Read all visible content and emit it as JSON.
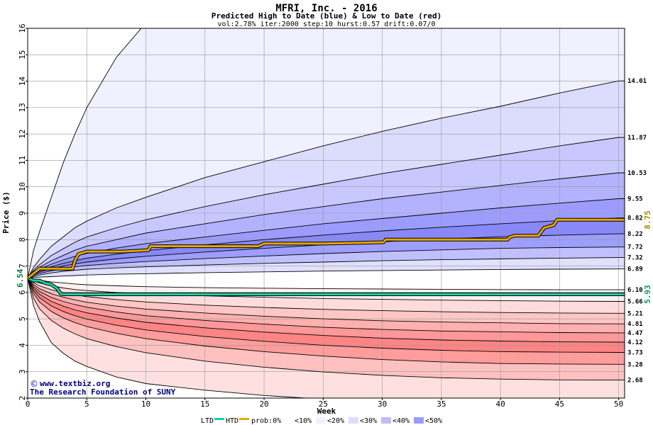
{
  "chart_data": {
    "type": "area",
    "title": "MFRI, Inc. - 2016",
    "subtitle": "Predicted High to Date (blue) &  Low to Date (red)",
    "params": "vol:2.78% iter:2000 step:10 hurst:0.57 drift:0.07/0",
    "xlabel": "Week",
    "ylabel": "Price ($)",
    "xlim": [
      0,
      50.5
    ],
    "ylim": [
      2,
      16
    ],
    "x_ticks": [
      0,
      5,
      10,
      15,
      20,
      25,
      30,
      35,
      40,
      45,
      50
    ],
    "y_ticks": [
      2,
      3,
      4,
      5,
      6,
      7,
      8,
      9,
      10,
      11,
      12,
      13,
      14,
      15,
      16
    ],
    "grid": true,
    "start_price": 6.54,
    "start_label": "6.54",
    "x_grid": [
      0,
      0.5,
      1,
      2,
      3,
      4,
      5,
      7.5,
      10,
      15,
      20,
      25,
      30,
      35,
      40,
      45,
      50
    ],
    "outer_upper": [
      6.54,
      7.6,
      8.3,
      9.6,
      10.9,
      12.0,
      13.0,
      14.9,
      16.0
    ],
    "outer_upper_x": [
      0,
      0.5,
      1,
      2,
      3,
      4,
      5,
      7.5,
      9.6
    ],
    "outer_lower": [
      6.54,
      5.5,
      4.9,
      4.1,
      3.7,
      3.4,
      3.2,
      2.8,
      2.55,
      2.3,
      2.1,
      2.0
    ],
    "outer_lower_x": [
      0,
      0.5,
      1,
      2,
      3,
      4,
      5,
      7.5,
      10,
      15,
      20,
      23.5
    ],
    "upper_lines": [
      {
        "label": "14.01",
        "values": [
          6.54,
          6.95,
          7.25,
          7.75,
          8.1,
          8.45,
          8.7,
          9.2,
          9.6,
          10.35,
          10.95,
          11.55,
          12.1,
          12.6,
          13.05,
          13.55,
          14.01
        ]
      },
      {
        "label": "11.87",
        "values": [
          6.54,
          6.85,
          7.05,
          7.4,
          7.65,
          7.9,
          8.1,
          8.45,
          8.75,
          9.25,
          9.7,
          10.1,
          10.5,
          10.85,
          11.2,
          11.55,
          11.87
        ]
      },
      {
        "label": "10.53",
        "values": [
          6.54,
          6.8,
          6.95,
          7.2,
          7.4,
          7.6,
          7.75,
          8.0,
          8.25,
          8.6,
          8.95,
          9.25,
          9.55,
          9.8,
          10.05,
          10.3,
          10.53
        ]
      },
      {
        "label": "9.55",
        "values": [
          6.54,
          6.75,
          6.88,
          7.07,
          7.23,
          7.37,
          7.48,
          7.68,
          7.85,
          8.1,
          8.35,
          8.6,
          8.8,
          9.0,
          9.2,
          9.38,
          9.55
        ]
      },
      {
        "label": "8.82",
        "values": [
          6.54,
          6.7,
          6.82,
          6.97,
          7.1,
          7.2,
          7.3,
          7.45,
          7.58,
          7.8,
          8.0,
          8.17,
          8.33,
          8.47,
          8.6,
          8.72,
          8.82
        ]
      },
      {
        "label": "8.22",
        "values": [
          6.54,
          6.67,
          6.77,
          6.9,
          7.0,
          7.08,
          7.15,
          7.27,
          7.37,
          7.53,
          7.67,
          7.8,
          7.92,
          8.02,
          8.11,
          8.17,
          8.22
        ]
      },
      {
        "label": "7.72",
        "values": [
          6.54,
          6.64,
          6.72,
          6.82,
          6.9,
          6.97,
          7.02,
          7.1,
          7.17,
          7.28,
          7.38,
          7.47,
          7.55,
          7.61,
          7.67,
          7.7,
          7.72
        ]
      },
      {
        "label": "7.32",
        "values": [
          6.54,
          6.6,
          6.66,
          6.74,
          6.8,
          6.84,
          6.88,
          6.93,
          6.97,
          7.04,
          7.1,
          7.15,
          7.2,
          7.24,
          7.27,
          7.3,
          7.32
        ]
      },
      {
        "label": "6.89",
        "values": [
          6.54,
          6.56,
          6.58,
          6.6,
          6.62,
          6.64,
          6.66,
          6.69,
          6.71,
          6.75,
          6.78,
          6.81,
          6.83,
          6.85,
          6.87,
          6.88,
          6.89
        ]
      }
    ],
    "lower_lines": [
      {
        "label": "6.10",
        "values": [
          6.54,
          6.5,
          6.46,
          6.4,
          6.36,
          6.32,
          6.29,
          6.25,
          6.22,
          6.18,
          6.16,
          6.14,
          6.13,
          6.12,
          6.11,
          6.1,
          6.1
        ]
      },
      {
        "label": "5.66",
        "values": [
          6.54,
          6.44,
          6.36,
          6.25,
          6.17,
          6.11,
          6.07,
          6.0,
          5.95,
          5.87,
          5.82,
          5.77,
          5.74,
          5.71,
          5.69,
          5.67,
          5.66
        ]
      },
      {
        "label": "5.21",
        "values": [
          6.54,
          6.37,
          6.25,
          6.1,
          5.99,
          5.91,
          5.84,
          5.73,
          5.64,
          5.52,
          5.43,
          5.36,
          5.31,
          5.27,
          5.24,
          5.22,
          5.21
        ]
      },
      {
        "label": "4.81",
        "values": [
          6.54,
          6.3,
          6.14,
          5.95,
          5.82,
          5.72,
          5.63,
          5.48,
          5.37,
          5.22,
          5.1,
          5.0,
          4.93,
          4.88,
          4.85,
          4.82,
          4.81
        ]
      },
      {
        "label": "4.47",
        "values": [
          6.54,
          6.23,
          6.04,
          5.81,
          5.66,
          5.54,
          5.44,
          5.26,
          5.12,
          4.94,
          4.8,
          4.68,
          4.6,
          4.54,
          4.51,
          4.48,
          4.47
        ]
      },
      {
        "label": "4.12",
        "values": [
          6.54,
          6.16,
          5.93,
          5.66,
          5.48,
          5.34,
          5.23,
          5.03,
          4.87,
          4.66,
          4.5,
          4.37,
          4.27,
          4.2,
          4.16,
          4.13,
          4.12
        ]
      },
      {
        "label": "3.73",
        "values": [
          6.54,
          6.07,
          5.8,
          5.49,
          5.28,
          5.12,
          4.99,
          4.76,
          4.58,
          4.33,
          4.15,
          4.0,
          3.89,
          3.81,
          3.76,
          3.74,
          3.73
        ]
      },
      {
        "label": "3.28",
        "values": [
          6.54,
          5.96,
          5.64,
          5.28,
          5.04,
          4.86,
          4.71,
          4.45,
          4.25,
          3.97,
          3.76,
          3.59,
          3.46,
          3.37,
          3.31,
          3.29,
          3.28
        ]
      },
      {
        "label": "2.68",
        "values": [
          6.54,
          5.78,
          5.38,
          4.94,
          4.65,
          4.43,
          4.25,
          3.95,
          3.72,
          3.4,
          3.17,
          2.99,
          2.86,
          2.77,
          2.72,
          2.69,
          2.68
        ]
      }
    ],
    "htd_label": "8.75",
    "htd": {
      "x": [
        0,
        1,
        2,
        3,
        3.8,
        4.0,
        4.3,
        5,
        6,
        7,
        8,
        10.2,
        10.4,
        12,
        15,
        19.5,
        20,
        22,
        25,
        30.1,
        30.3,
        35,
        40.6,
        40.8,
        41.2,
        43.2,
        43.7,
        44.5,
        44.8,
        46,
        50.5
      ],
      "y": [
        6.54,
        6.9,
        6.9,
        6.9,
        6.9,
        7.2,
        7.45,
        7.55,
        7.55,
        7.55,
        7.55,
        7.6,
        7.75,
        7.75,
        7.75,
        7.75,
        7.85,
        7.85,
        7.85,
        7.9,
        8.0,
        8.0,
        8.0,
        8.1,
        8.15,
        8.15,
        8.45,
        8.55,
        8.75,
        8.75,
        8.75
      ]
    },
    "ltd_label": "5.93",
    "ltd": {
      "x": [
        0,
        0.5,
        1,
        1.5,
        2,
        2.5,
        2.8,
        3,
        5,
        10,
        20,
        30,
        40,
        50.5
      ],
      "y": [
        6.54,
        6.45,
        6.45,
        6.35,
        6.3,
        6.15,
        5.95,
        5.93,
        5.93,
        5.93,
        5.93,
        5.93,
        5.93,
        5.93
      ]
    },
    "bands": [
      {
        "name": "0%",
        "color": "#ffffff"
      },
      {
        "name": "10%",
        "color": "#f0f0ff"
      },
      {
        "name": "20%",
        "color": "#dcdcff"
      },
      {
        "name": "30%",
        "color": "#bebeff"
      },
      {
        "name": "40%",
        "color": "#9b9bff"
      },
      {
        "name": "50%",
        "color": "#7b7bf5"
      }
    ],
    "lower_band_colors": [
      "#ffffff",
      "#fff0f0",
      "#ffdcdc",
      "#ffc6c6",
      "#ffb0b0",
      "#ff9898",
      "#ff8484",
      "#ff9c9c",
      "#ffc0c0",
      "#ffe0e0"
    ],
    "upper_band_colors": [
      "#ffffff",
      "#f0f0ff",
      "#dcdcff",
      "#c8c8ff",
      "#b2b2ff",
      "#9c9cff",
      "#8888f8",
      "#9e9eff",
      "#c0c0ff",
      "#e0e0ff"
    ],
    "colors": {
      "htd": "#e6a800",
      "ltd": "#18d2a0",
      "htd_label": "#a58a00",
      "ltd_label": "#0a9a6e",
      "credit": "#000080"
    },
    "legend": {
      "ltd": "LTD",
      "htd": "HTD",
      "prob": "prob:0%",
      "b10": "<10%",
      "b20": "<20%",
      "b30": "<30%",
      "b40": "<40%",
      "b50": "<50%"
    },
    "credit_line1": "www.textbiz.org",
    "credit_line2": "The Research Foundation of SUNY"
  }
}
